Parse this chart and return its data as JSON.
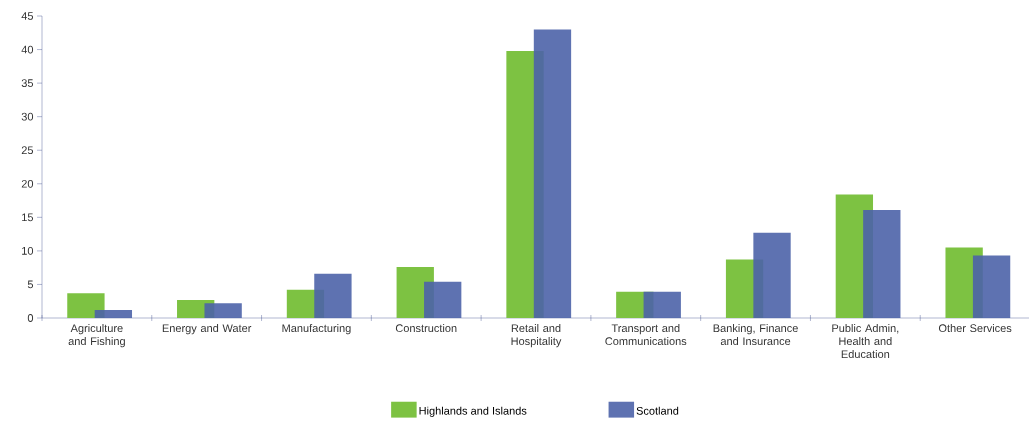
{
  "chart_data": {
    "type": "bar",
    "categories": [
      "Agriculture and Fishing",
      "Energy and Water",
      "Manufacturing",
      "Construction",
      "Retail and Hospitality",
      "Transport and Communications",
      "Banking, Finance and Insurance",
      "Public Admin, Health and Education",
      "Other Services"
    ],
    "series": [
      {
        "name": "Highlands and Islands",
        "color": "#7dc242",
        "values": [
          3.7,
          2.7,
          4.2,
          7.6,
          39.8,
          3.9,
          8.7,
          18.4,
          10.5
        ]
      },
      {
        "name": "Scotland",
        "color": "#4d63a8",
        "values": [
          1.2,
          2.2,
          6.6,
          5.4,
          43,
          3.9,
          12.7,
          16.1,
          9.3
        ]
      }
    ],
    "ylim": [
      0,
      45
    ],
    "yticks": [
      0,
      5,
      10,
      15,
      20,
      25,
      30,
      35,
      40,
      45
    ],
    "grid": false,
    "legend": "bottom"
  }
}
